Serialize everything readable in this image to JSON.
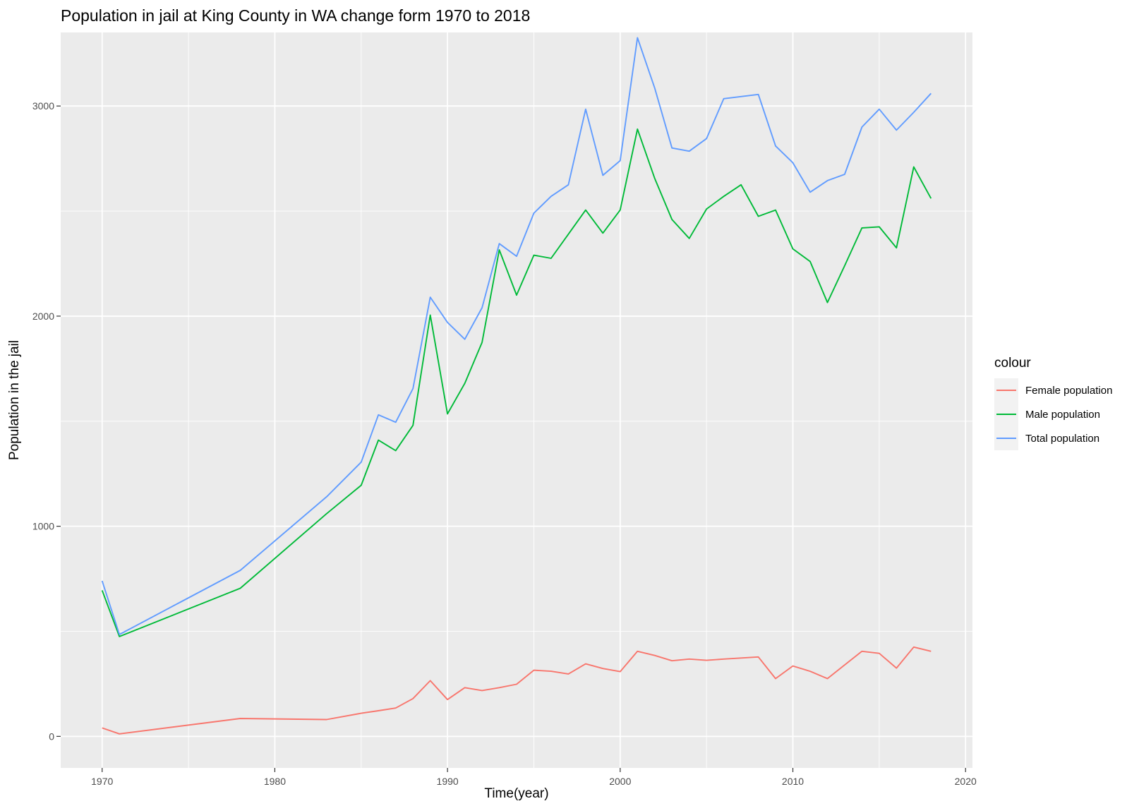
{
  "chart_data": {
    "type": "line",
    "title": "Population in jail at King County in WA change form 1970 to 2018",
    "xlabel": "Time(year)",
    "ylabel": "Population in the jail",
    "xlim": [
      1967.6,
      2020.4
    ],
    "ylim": [
      -150,
      3350
    ],
    "x_ticks": [
      1970,
      1980,
      1990,
      2000,
      2010,
      2020
    ],
    "y_ticks": [
      0,
      1000,
      2000,
      3000
    ],
    "grid": true,
    "legend": {
      "title": "colour",
      "position": "right"
    },
    "x": [
      1970,
      1971,
      1978,
      1983,
      1985,
      1986,
      1987,
      1988,
      1989,
      1990,
      1991,
      1992,
      1993,
      1994,
      1995,
      1996,
      1997,
      1998,
      1999,
      2000,
      2001,
      2002,
      2003,
      2004,
      2005,
      2006,
      2007,
      2008,
      2009,
      2010,
      2011,
      2012,
      2013,
      2014,
      2015,
      2016,
      2017,
      2018
    ],
    "series": [
      {
        "name": "Female population",
        "color": "#F8766D",
        "values": [
          40,
          12,
          85,
          80,
          110,
          122,
          135,
          180,
          265,
          175,
          232,
          218,
          232,
          248,
          315,
          310,
          297,
          345,
          323,
          308,
          405,
          385,
          360,
          368,
          362,
          368,
          373,
          378,
          275,
          335,
          310,
          275,
          340,
          405,
          395,
          325,
          425,
          405
        ]
      },
      {
        "name": "Male population",
        "color": "#00BA38",
        "values": [
          695,
          475,
          705,
          1060,
          1195,
          1410,
          1360,
          1480,
          2005,
          1535,
          1680,
          1875,
          2315,
          2100,
          2290,
          2275,
          2390,
          2505,
          2395,
          2505,
          2890,
          2655,
          2460,
          2370,
          2510,
          2570,
          2625,
          2475,
          2505,
          2320,
          2260,
          2065,
          2240,
          2420,
          2425,
          2325,
          2710,
          2560
        ]
      },
      {
        "name": "Total population",
        "color": "#619CFF",
        "values": [
          740,
          485,
          790,
          1140,
          1305,
          1530,
          1495,
          1655,
          2090,
          1970,
          1890,
          2040,
          2345,
          2285,
          2490,
          2570,
          2625,
          2985,
          2670,
          2740,
          3325,
          3085,
          2800,
          2785,
          2845,
          3035,
          3045,
          3055,
          2810,
          2730,
          2590,
          2645,
          2675,
          2900,
          2985,
          2885,
          2970,
          3060
        ]
      }
    ]
  }
}
